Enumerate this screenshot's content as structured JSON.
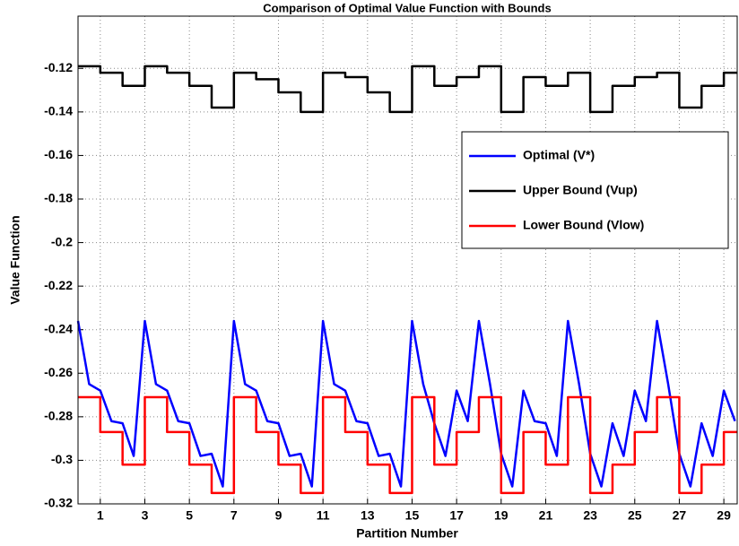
{
  "chart_data": {
    "type": "line",
    "title": "Comparison of Optimal Value Function with Bounds",
    "xlabel": "Partition Number",
    "ylabel": "Value Function",
    "xlim": [
      0,
      29.6
    ],
    "ylim": [
      -0.32,
      -0.096
    ],
    "xticks": [
      1,
      3,
      5,
      7,
      9,
      11,
      13,
      15,
      17,
      19,
      21,
      23,
      25,
      27,
      29
    ],
    "yticks": [
      -0.32,
      -0.3,
      -0.28,
      -0.26,
      -0.24,
      -0.22,
      -0.2,
      -0.18,
      -0.16,
      -0.14,
      -0.12
    ],
    "grid": true,
    "legend": "upper right",
    "series": [
      {
        "name": "Optimal (V*)",
        "color": "#0000ff",
        "x": [
          0,
          0.5,
          1,
          1.5,
          2,
          2.5,
          3,
          3.5,
          4,
          4.5,
          5,
          5.5,
          6,
          6.5,
          7,
          7.5,
          8,
          8.5,
          9,
          9.5,
          10,
          10.5,
          11,
          11.5,
          12,
          12.5,
          13,
          13.5,
          14,
          14.5,
          15,
          15.5,
          16,
          16.5,
          17,
          17.5,
          18,
          18.5,
          19,
          19.5,
          20,
          20.5,
          21,
          21.5,
          22,
          22.5,
          23,
          23.5,
          24,
          24.5,
          25,
          25.5,
          26,
          26.5,
          27,
          27.5,
          28,
          28.5,
          29,
          29.5
        ],
        "values": [
          -0.236,
          -0.265,
          -0.268,
          -0.282,
          -0.283,
          -0.298,
          -0.236,
          -0.265,
          -0.268,
          -0.282,
          -0.283,
          -0.298,
          -0.297,
          -0.312,
          -0.236,
          -0.265,
          -0.268,
          -0.282,
          -0.283,
          -0.298,
          -0.297,
          -0.312,
          -0.236,
          -0.265,
          -0.268,
          -0.282,
          -0.283,
          -0.298,
          -0.297,
          -0.312,
          -0.236,
          -0.265,
          -0.283,
          -0.298,
          -0.268,
          -0.282,
          -0.236,
          -0.265,
          -0.297,
          -0.312,
          -0.268,
          -0.282,
          -0.283,
          -0.298,
          -0.236,
          -0.265,
          -0.297,
          -0.312,
          -0.283,
          -0.298,
          -0.268,
          -0.282,
          -0.236,
          -0.265,
          -0.297,
          -0.312,
          -0.283,
          -0.298,
          -0.268,
          -0.282
        ]
      },
      {
        "name": "Upper Bound (Vup)",
        "color": "#000000",
        "x": [
          0,
          1,
          1,
          2,
          2,
          3,
          3,
          4,
          4,
          5,
          5,
          6,
          6,
          7,
          7,
          8,
          8,
          9,
          9,
          10,
          10,
          11,
          11,
          12,
          12,
          13,
          13,
          14,
          14,
          15,
          15,
          16,
          16,
          17,
          17,
          18,
          18,
          19,
          19,
          20,
          20,
          21,
          21,
          22,
          22,
          23,
          23,
          24,
          24,
          25,
          25,
          26,
          26,
          27,
          27,
          28,
          28,
          29,
          29,
          29.6
        ],
        "values": [
          -0.119,
          -0.119,
          -0.122,
          -0.122,
          -0.128,
          -0.128,
          -0.119,
          -0.119,
          -0.122,
          -0.122,
          -0.128,
          -0.128,
          -0.138,
          -0.138,
          -0.122,
          -0.122,
          -0.125,
          -0.125,
          -0.131,
          -0.131,
          -0.14,
          -0.14,
          -0.122,
          -0.122,
          -0.124,
          -0.124,
          -0.131,
          -0.131,
          -0.14,
          -0.14,
          -0.119,
          -0.119,
          -0.128,
          -0.128,
          -0.124,
          -0.124,
          -0.119,
          -0.119,
          -0.14,
          -0.14,
          -0.124,
          -0.124,
          -0.128,
          -0.128,
          -0.122,
          -0.122,
          -0.14,
          -0.14,
          -0.128,
          -0.128,
          -0.124,
          -0.124,
          -0.122,
          -0.122,
          -0.138,
          -0.138,
          -0.128,
          -0.128,
          -0.122,
          -0.122
        ]
      },
      {
        "name": "Lower Bound (Vlow)",
        "color": "#ff0000",
        "x": [
          0,
          1,
          1,
          2,
          2,
          3,
          3,
          4,
          4,
          5,
          5,
          6,
          6,
          7,
          7,
          8,
          8,
          9,
          9,
          10,
          10,
          11,
          11,
          12,
          12,
          13,
          13,
          14,
          14,
          15,
          15,
          16,
          16,
          17,
          17,
          18,
          18,
          19,
          19,
          20,
          20,
          21,
          21,
          22,
          22,
          23,
          23,
          24,
          24,
          25,
          25,
          26,
          26,
          27,
          27,
          28,
          28,
          29,
          29,
          29.6
        ],
        "values": [
          -0.271,
          -0.271,
          -0.287,
          -0.287,
          -0.302,
          -0.302,
          -0.271,
          -0.271,
          -0.287,
          -0.287,
          -0.302,
          -0.302,
          -0.315,
          -0.315,
          -0.271,
          -0.271,
          -0.287,
          -0.287,
          -0.302,
          -0.302,
          -0.315,
          -0.315,
          -0.271,
          -0.271,
          -0.287,
          -0.287,
          -0.302,
          -0.302,
          -0.315,
          -0.315,
          -0.271,
          -0.271,
          -0.302,
          -0.302,
          -0.287,
          -0.287,
          -0.271,
          -0.271,
          -0.315,
          -0.315,
          -0.287,
          -0.287,
          -0.302,
          -0.302,
          -0.271,
          -0.271,
          -0.315,
          -0.315,
          -0.302,
          -0.302,
          -0.287,
          -0.287,
          -0.271,
          -0.271,
          -0.315,
          -0.315,
          -0.302,
          -0.302,
          -0.287,
          -0.287
        ]
      }
    ]
  }
}
